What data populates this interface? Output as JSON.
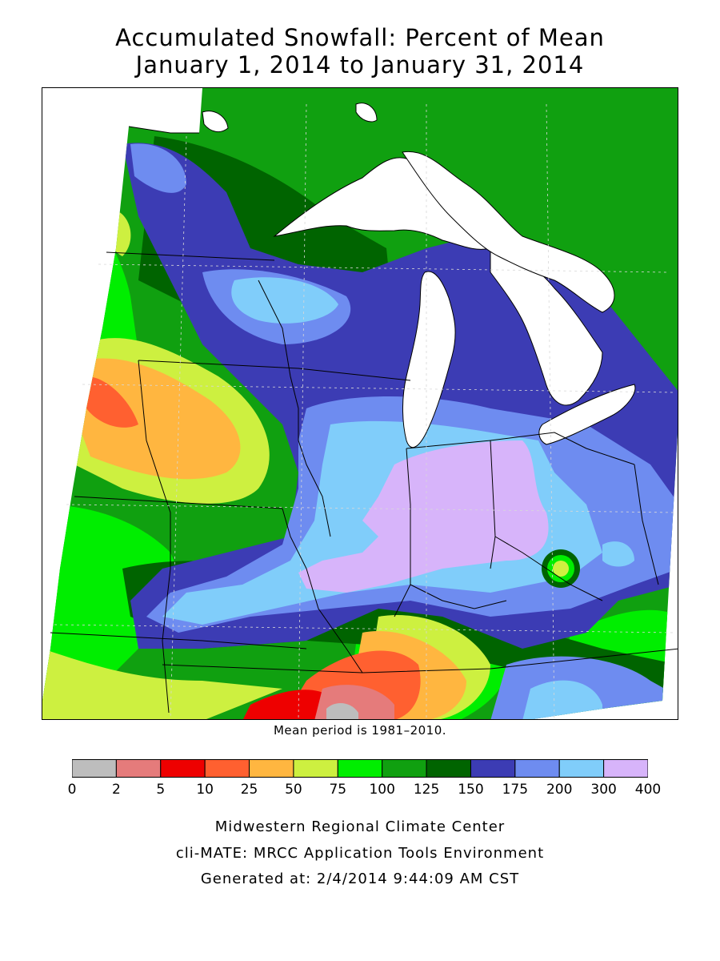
{
  "title": {
    "line1": "Accumulated Snowfall: Percent of Mean",
    "line2": "January 1, 2014 to January 31, 2014"
  },
  "map": {
    "note": "Mean period is 1981–2010."
  },
  "legend": {
    "ticks": [
      "0",
      "2",
      "5",
      "10",
      "25",
      "50",
      "75",
      "100",
      "125",
      "150",
      "175",
      "200",
      "300",
      "400"
    ],
    "colors": [
      "#bdbdbd",
      "#e57b7b",
      "#ee0000",
      "#ff6030",
      "#ffb640",
      "#cdf040",
      "#00ee00",
      "#10a010",
      "#006400",
      "#3c3cb4",
      "#6e8cf0",
      "#80cdfa",
      "#d7b4fa"
    ]
  },
  "footer": {
    "line1": "Midwestern Regional Climate Center",
    "line2": "cli-MATE: MRCC Application Tools Environment",
    "line3": "Generated at: 2/4/2014 9:44:09 AM CST"
  }
}
